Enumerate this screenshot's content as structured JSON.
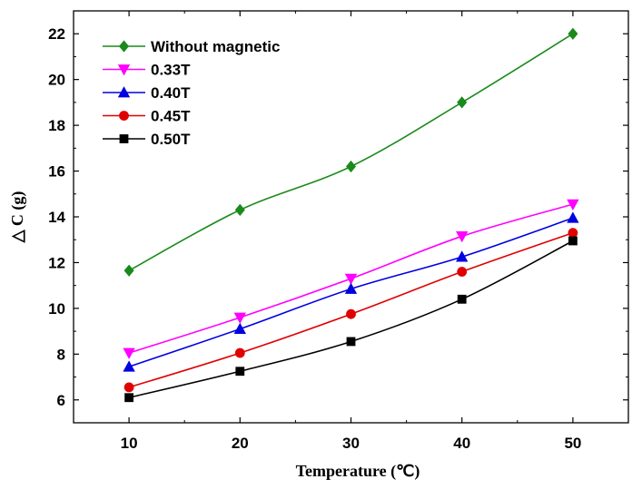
{
  "chart_data": {
    "type": "line",
    "title": "",
    "xlabel": "Temperature (℃)",
    "ylabel": "△ C (g)",
    "xlim": [
      5,
      55
    ],
    "ylim": [
      5,
      23
    ],
    "x_ticks": [
      10,
      20,
      30,
      40,
      50
    ],
    "y_ticks": [
      6,
      8,
      10,
      12,
      14,
      16,
      18,
      20,
      22
    ],
    "x_tick_labels": [
      "10",
      "20",
      "30",
      "40",
      "50"
    ],
    "y_tick_labels": [
      "6",
      "8",
      "10",
      "12",
      "14",
      "16",
      "18",
      "20",
      "22"
    ],
    "grid": false,
    "legend_position": "top-left",
    "x": [
      10,
      20,
      30,
      40,
      50
    ],
    "series": [
      {
        "name": "Without magnetic",
        "color": "#1a8a1a",
        "marker": "diamond",
        "values": [
          11.65,
          14.3,
          16.2,
          19.0,
          22.0
        ]
      },
      {
        "name": "0.33T",
        "color": "#ff00ff",
        "marker": "triangle-down",
        "values": [
          8.05,
          9.6,
          11.3,
          13.15,
          14.55
        ]
      },
      {
        "name": "0.40T",
        "color": "#0000e0",
        "marker": "triangle-up",
        "values": [
          7.45,
          9.1,
          10.85,
          12.25,
          13.95
        ]
      },
      {
        "name": "0.45T",
        "color": "#e00000",
        "marker": "circle",
        "values": [
          6.55,
          8.05,
          9.75,
          11.6,
          13.3
        ]
      },
      {
        "name": "0.50T",
        "color": "#000000",
        "marker": "square",
        "values": [
          6.1,
          7.25,
          8.55,
          10.4,
          12.95
        ]
      }
    ]
  }
}
